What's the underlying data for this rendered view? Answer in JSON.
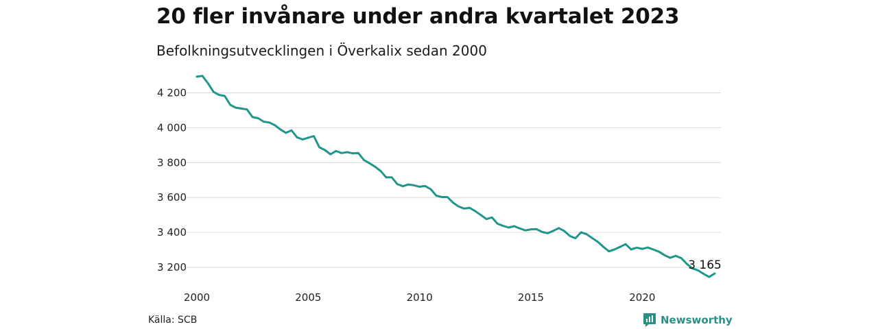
{
  "header": {
    "title": "20 fler invånare under andra kvartalet 2023",
    "subtitle": "Befolkningsutvecklingen i Överkalix sedan 2000"
  },
  "footer": {
    "source": "Källa: SCB",
    "brand": "Newsworthy",
    "brand_icon": "newsworthy-logo-icon"
  },
  "colors": {
    "line": "#1f968b",
    "grid": "#d9d9d9",
    "brand": "#2a8f84"
  },
  "chart_data": {
    "type": "line",
    "title": "20 fler invånare under andra kvartalet 2023",
    "subtitle": "Befolkningsutvecklingen i Överkalix sedan 2000",
    "xlabel": "",
    "ylabel": "",
    "x_start_year": 2000,
    "x_step": 0.25,
    "xlim": [
      2000,
      2023.5
    ],
    "ylim": [
      3110,
      4300
    ],
    "y_ticks": [
      3200,
      3400,
      3600,
      3800,
      4000,
      4200
    ],
    "y_tick_labels": [
      "3 200",
      "3 400",
      "3 600",
      "3 800",
      "4 000",
      "4 200"
    ],
    "x_ticks": [
      2000,
      2005,
      2010,
      2015,
      2020
    ],
    "x_tick_labels": [
      "2000",
      "2005",
      "2010",
      "2015",
      "2020"
    ],
    "grid": true,
    "legend": "none",
    "end_label": "3 165",
    "series": [
      {
        "values": [
          4293,
          4297,
          4255,
          4205,
          4188,
          4182,
          4131,
          4115,
          4110,
          4105,
          4061,
          4055,
          4035,
          4030,
          4015,
          3990,
          3971,
          3985,
          3945,
          3933,
          3943,
          3952,
          3888,
          3872,
          3848,
          3867,
          3855,
          3860,
          3853,
          3855,
          3815,
          3797,
          3777,
          3752,
          3716,
          3716,
          3677,
          3665,
          3675,
          3670,
          3662,
          3666,
          3648,
          3611,
          3603,
          3603,
          3571,
          3549,
          3537,
          3541,
          3522,
          3500,
          3477,
          3486,
          3450,
          3438,
          3428,
          3436,
          3423,
          3412,
          3418,
          3419,
          3403,
          3396,
          3409,
          3425,
          3408,
          3380,
          3367,
          3401,
          3390,
          3368,
          3347,
          3318,
          3292,
          3303,
          3317,
          3333,
          3303,
          3313,
          3306,
          3314,
          3302,
          3290,
          3270,
          3255,
          3266,
          3253,
          3220,
          3194,
          3183,
          3163,
          3145,
          3165
        ]
      }
    ]
  }
}
